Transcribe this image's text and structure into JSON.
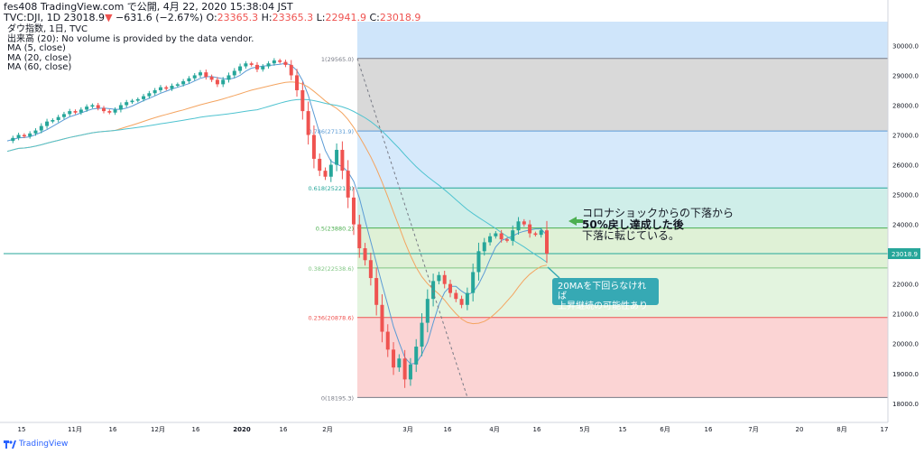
{
  "header": {
    "line1": "fes408 TradingView.com で公開, 4月 22, 2020 15:38:04 JST",
    "symbol": "TVC:DJI, 1D",
    "price": "23018.9",
    "change": "−631.6 (−2.67%)",
    "o_label": "O:",
    "o": "23365.3",
    "h_label": "H:",
    "h": "23365.3",
    "l_label": "L:",
    "l": "22941.9",
    "c_label": "C:",
    "c": "23018.9"
  },
  "legend": {
    "title": "ダウ指数, 1日, TVC",
    "volume": "出来高 (20): No volume is provided by the data vendor.",
    "ma5": "MA (5, close)",
    "ma20": "MA (20, close)",
    "ma60": "MA (60, close)"
  },
  "annotations": {
    "callout1_line1": "コロナショックからの下落から",
    "callout1_line2": "50%戻し達成した後",
    "callout1_line3": "下落に転じている。",
    "callout2_line1": "20MAを下回らなければ",
    "callout2_line2": "上昇継続の可能性あり"
  },
  "footer": {
    "brand": "TradingView"
  },
  "colors": {
    "up": "#26a69a",
    "down": "#ef5350",
    "ma5": "#5b9bd5",
    "ma20": "#f4a460",
    "ma60": "#4fc3d0",
    "fib_1_0786": "#d9d9d9",
    "fib_0786_0618": "#d6e9fb",
    "fib_0618_05": "#cfeee9",
    "fib_05_0382": "#dff1d6",
    "fib_0382_0236": "#e3f4df",
    "fib_0236_0": "#fbd4d4",
    "top_band": "#cfe5fa"
  },
  "chart_data": {
    "type": "candlestick",
    "y_axis": {
      "ylim": [
        17600,
        30800
      ],
      "ticks": [
        18000,
        19000,
        20000,
        21000,
        22000,
        23000,
        24000,
        25000,
        26000,
        27000,
        28000,
        29000,
        30000
      ],
      "tick_labels": [
        "18000.0",
        "19000.0",
        "20000.0",
        "21000.0",
        "22000.0",
        "23000.0",
        "24000.0",
        "25000.0",
        "26000.0",
        "27000.0",
        "28000.0",
        "29000.0",
        "30000.0"
      ],
      "last_price_label": "23018.9",
      "last_price": 23018.9
    },
    "x_axis": {
      "tick_labels": [
        "15",
        "11月",
        "16",
        "12月",
        "16",
        "2020",
        "16",
        "2月",
        "3月",
        "16",
        "4月",
        "16",
        "5月",
        "15",
        "6月",
        "16",
        "7月",
        "20",
        "8月",
        "17"
      ]
    },
    "fib_levels": [
      {
        "ratio": "1",
        "price": 29565.0,
        "label": "1(29565.0)"
      },
      {
        "ratio": "0.786",
        "price": 27131.9,
        "label": "0.786(27131.9)"
      },
      {
        "ratio": "0.618",
        "price": 25221.8,
        "label": "0.618(25221.8)"
      },
      {
        "ratio": "0.5",
        "price": 23880.2,
        "label": "0.5(23880.2)"
      },
      {
        "ratio": "0.382",
        "price": 22538.6,
        "label": "0.382(22538.6)"
      },
      {
        "ratio": "0.236",
        "price": 20878.6,
        "label": "0.236(20878.6)"
      },
      {
        "ratio": "0",
        "price": 18195.3,
        "label": "0(18195.3)"
      }
    ],
    "close_path": [
      26800,
      26900,
      27000,
      26950,
      27050,
      27150,
      27300,
      27450,
      27500,
      27600,
      27700,
      27800,
      27750,
      27850,
      27950,
      28000,
      27900,
      27800,
      27750,
      27850,
      28000,
      28100,
      28150,
      28200,
      28300,
      28400,
      28500,
      28600,
      28550,
      28650,
      28700,
      28800,
      28900,
      29000,
      29100,
      28950,
      28850,
      28700,
      28850,
      29000,
      29150,
      29300,
      29400,
      29350,
      29200,
      29300,
      29400,
      29500,
      29450,
      29350,
      29000,
      28500,
      27800,
      27000,
      26200,
      25800,
      25600,
      26000,
      26500,
      25800,
      24900,
      24000,
      23200,
      22800,
      22200,
      21300,
      20400,
      19800,
      19200,
      19500,
      18800,
      19300,
      19900,
      20700,
      21500,
      22100,
      22300,
      22000,
      21700,
      21500,
      21300,
      21700,
      22400,
      23100,
      23400,
      23600,
      23700,
      23500,
      23450,
      23800,
      24100,
      24000,
      23700,
      23650,
      23800,
      23019
    ]
  }
}
